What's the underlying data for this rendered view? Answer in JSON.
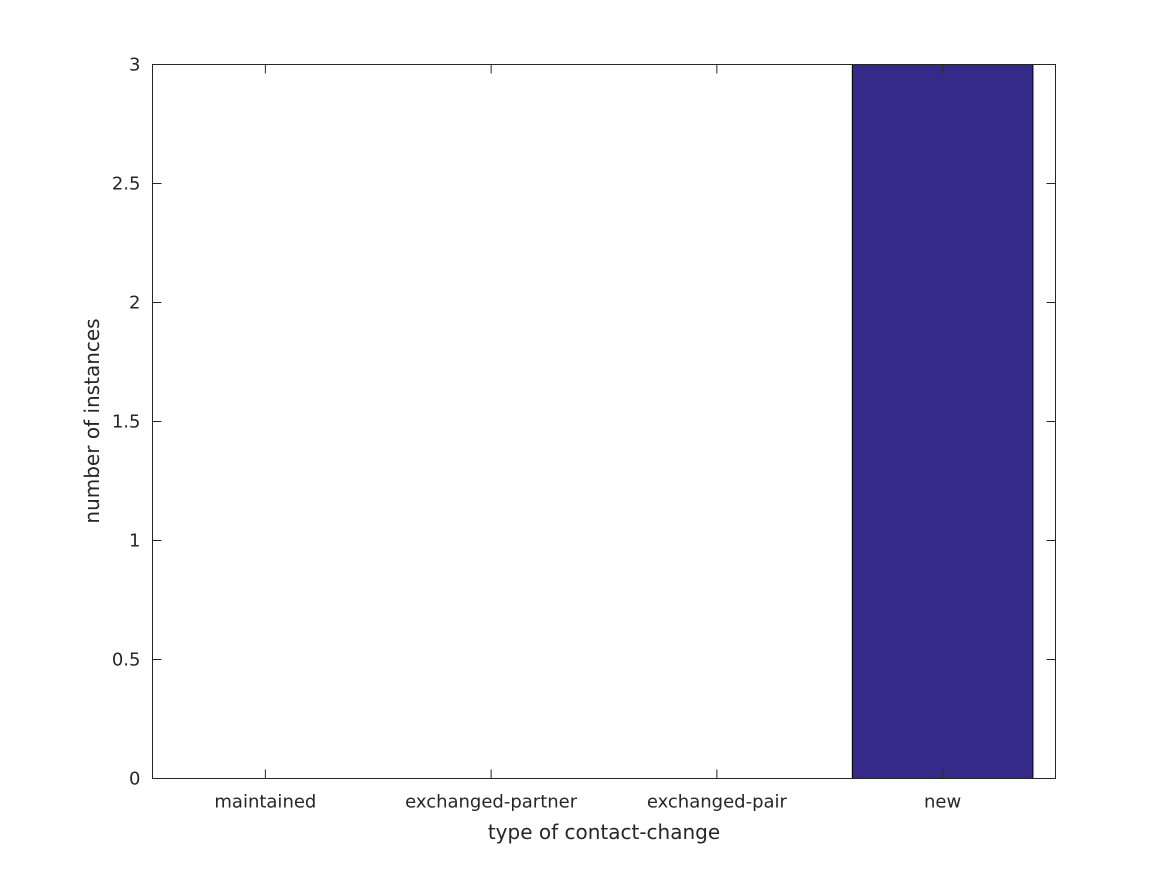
{
  "chart_data": {
    "type": "bar",
    "categories": [
      "maintained",
      "exchanged-partner",
      "exchanged-pair",
      "new"
    ],
    "values": [
      0,
      0,
      0,
      3
    ],
    "title": "",
    "xlabel": "type of contact-change",
    "ylabel": "number of instances",
    "ylim": [
      0,
      3
    ],
    "yticks": [
      "0",
      "0.5",
      "1",
      "1.5",
      "2",
      "2.5",
      "3"
    ],
    "grid": false,
    "bar_color": "#352a87",
    "edge_color": "#000000"
  }
}
